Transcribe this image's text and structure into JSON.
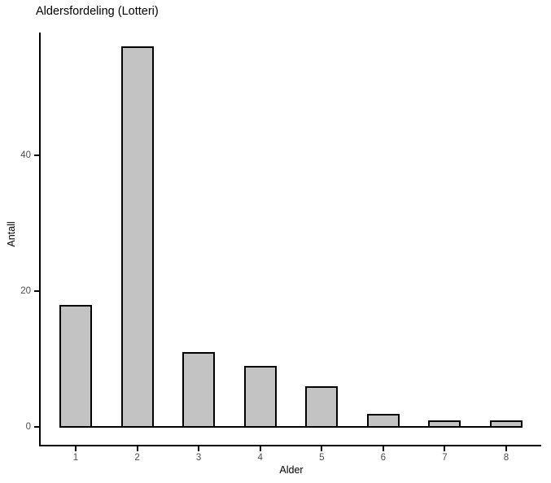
{
  "window": {
    "background": "#ffffff"
  },
  "chart_data": {
    "type": "bar",
    "title": "Aldersfordeling (Lotteri)",
    "xlabel": "Alder",
    "ylabel": "Antall",
    "categories": [
      "1",
      "2",
      "3",
      "4",
      "5",
      "6",
      "7",
      "8"
    ],
    "values": [
      18,
      56,
      11,
      9,
      6,
      2,
      1,
      1
    ],
    "y_ticks": [
      0,
      20,
      40
    ],
    "ylim": [
      0,
      58
    ],
    "grid": false,
    "legend": "none",
    "bar_fill": "#c3c3c3",
    "bar_border": "#000000",
    "axis_color": "#000000",
    "tick_label_color": "#4d4d4d",
    "title_color": "#000000"
  }
}
